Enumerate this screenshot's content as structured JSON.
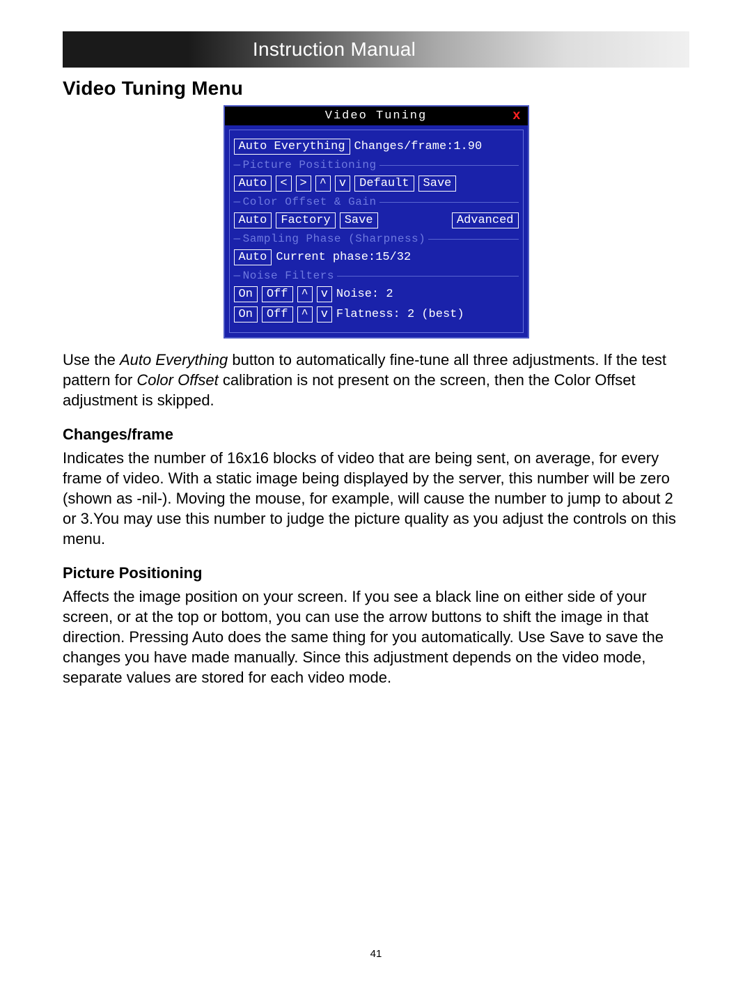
{
  "header": {
    "text": "Instruction Manual"
  },
  "title": "Video Tuning Menu",
  "panel": {
    "title": "Video Tuning",
    "close": "x",
    "auto_everything": "Auto Everything",
    "changes_label": "Changes/frame:",
    "changes_value": "1.90",
    "sections": {
      "positioning": {
        "label": "Picture Positioning",
        "auto": "Auto",
        "left": "<",
        "right": ">",
        "up": "^",
        "down": "v",
        "default": "Default",
        "save": "Save"
      },
      "color": {
        "label": "Color Offset & Gain",
        "auto": "Auto",
        "factory": "Factory",
        "save": "Save",
        "advanced": "Advanced"
      },
      "sampling": {
        "label": "Sampling Phase (Sharpness)",
        "auto": "Auto",
        "current": "Current phase:15/32"
      },
      "noise": {
        "label": "Noise Filters",
        "on": "On",
        "off": "Off",
        "up": "^",
        "down": "v",
        "noise_label": "Noise:",
        "noise_value": "2",
        "flat_label": "Flatness:",
        "flat_value": "2 (best)"
      }
    }
  },
  "body": {
    "p1a": "Use the ",
    "p1b": "Auto Everything",
    "p1c": " button to automatically fine-tune all three adjustments. If the test pattern for ",
    "p1d": "Color Offset",
    "p1e": " calibration is not present on the screen, then the Color Offset adjustment is skipped.",
    "h2": "Changes/frame",
    "p2": "Indicates the number of 16x16 blocks of video that are being sent, on average, for every frame of video.  With a static image being displayed by the server, this number will be zero (shown as -nil-). Moving the mouse, for example, will cause the number to jump to about 2 or 3.You may use this number to judge the picture quality as you adjust the controls on this menu.",
    "h3": "Picture Positioning",
    "p3": "Affects the image position on your screen. If you see a black line on either side of your screen, or at the top or bottom, you can use the arrow buttons to shift the image in that direction. Pressing Auto does the same thing for you automatically. Use Save to save the changes you have made manually. Since this adjustment depends on the video mode, separate values are stored for each video mode."
  },
  "page_number": "41",
  "colors": {
    "panel_bg": "#1a22aa",
    "panel_border": "#4a57c4",
    "section_label": "#6f7ae0",
    "close": "#ff2222"
  },
  "fonts": {
    "body_size_pt": 17,
    "title_size_pt": 21,
    "mono": "Courier New"
  }
}
